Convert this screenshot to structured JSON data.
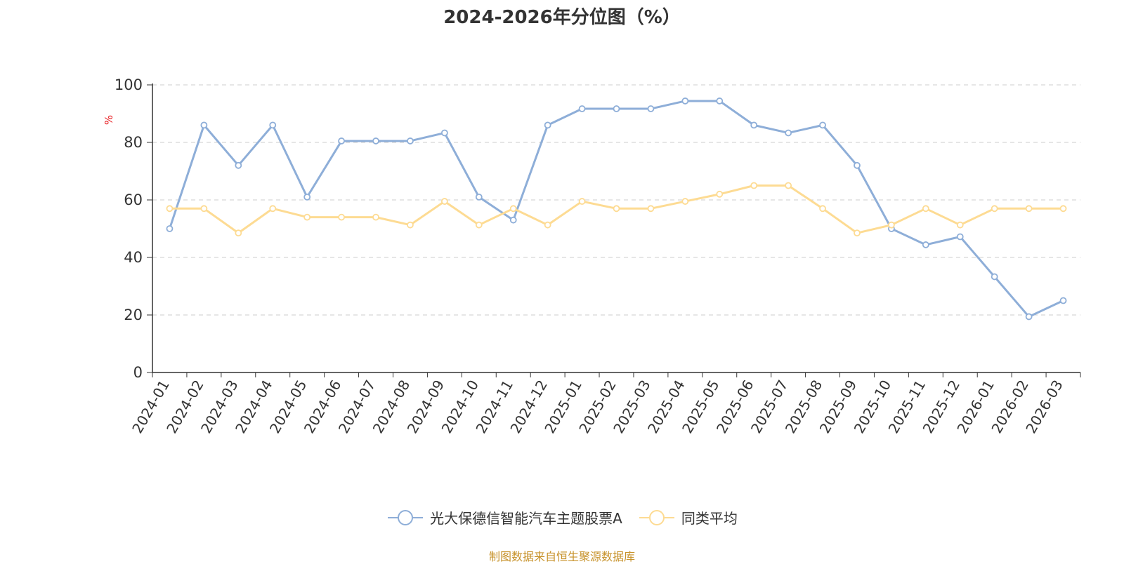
{
  "chart_data": {
    "type": "line",
    "title": "2024-2026年分位图（%）",
    "ylabel": "%",
    "ylim": [
      0,
      100
    ],
    "yticks": [
      0,
      20,
      40,
      60,
      80,
      100
    ],
    "grid": true,
    "legend_position": "bottom-center",
    "categories": [
      "2024-01",
      "2024-02",
      "2024-03",
      "2024-04",
      "2024-05",
      "2024-06",
      "2024-07",
      "2024-08",
      "2024-09",
      "2024-10",
      "2024-11",
      "2024-12",
      "2025-01",
      "2025-02",
      "2025-03",
      "2025-04",
      "2025-05",
      "2025-06",
      "2025-07",
      "2025-08",
      "2025-09",
      "2025-10",
      "2025-11",
      "2025-12",
      "2026-01",
      "2026-02",
      "2026-03"
    ],
    "series": [
      {
        "name": "光大保德信智能汽车主题股票A",
        "color": "#8eaed8",
        "values": [
          50,
          86,
          72,
          86,
          61,
          80.5,
          80.5,
          80.5,
          83.3,
          61,
          53,
          86,
          91.7,
          91.7,
          91.7,
          94.4,
          94.4,
          86,
          83.3,
          86,
          72,
          50,
          44.4,
          47.2,
          33.3,
          19.4,
          25
        ]
      },
      {
        "name": "同类平均",
        "color": "#fddb93",
        "values": [
          57,
          57,
          48.5,
          57,
          54,
          54,
          54,
          51.3,
          59.5,
          51.3,
          57,
          51.3,
          59.5,
          57,
          57,
          59.5,
          62,
          65,
          65,
          57,
          48.5,
          51.3,
          57,
          51.3,
          57,
          57,
          57
        ]
      }
    ]
  },
  "source_text": "制图数据来自恒生聚源数据库",
  "colors": {
    "axis": "#333333",
    "grid": "#cccccc",
    "source": "#c7922a",
    "unit": "#e8191d"
  }
}
